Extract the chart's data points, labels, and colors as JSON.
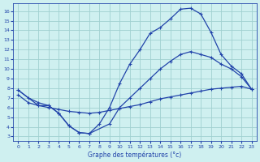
{
  "xlabel": "Graphe des températures (°c)",
  "bg_color": "#cff0f0",
  "grid_color": "#a0d0d0",
  "line_color": "#2244aa",
  "xlim": [
    -0.5,
    23.5
  ],
  "ylim": [
    2.5,
    16.8
  ],
  "xticks": [
    0,
    1,
    2,
    3,
    4,
    5,
    6,
    7,
    8,
    9,
    10,
    11,
    12,
    13,
    14,
    15,
    16,
    17,
    18,
    19,
    20,
    21,
    22,
    23
  ],
  "yticks": [
    3,
    4,
    5,
    6,
    7,
    8,
    9,
    10,
    11,
    12,
    13,
    14,
    15,
    16
  ],
  "curve_top_x": [
    0,
    1,
    2,
    3,
    4,
    5,
    6,
    7,
    8,
    9,
    10,
    11,
    12,
    13,
    14,
    15,
    16,
    17,
    18,
    19,
    20,
    21,
    22,
    23
  ],
  "curve_top_y": [
    7.8,
    7.0,
    6.5,
    6.2,
    5.4,
    4.1,
    3.4,
    3.3,
    4.3,
    6.0,
    8.5,
    10.5,
    12.0,
    13.7,
    14.3,
    15.2,
    16.2,
    16.3,
    15.7,
    13.8,
    11.5,
    10.3,
    9.5,
    7.9
  ],
  "curve_mid_x": [
    0,
    2,
    3,
    4,
    5,
    6,
    7,
    9,
    10,
    11,
    12,
    13,
    14,
    15,
    16,
    17,
    18,
    19,
    20,
    21,
    22,
    23
  ],
  "curve_mid_y": [
    7.8,
    6.2,
    6.2,
    5.4,
    4.1,
    3.4,
    3.3,
    4.3,
    6.0,
    7.0,
    8.0,
    9.0,
    10.0,
    10.8,
    11.5,
    11.8,
    11.5,
    11.2,
    10.5,
    10.0,
    9.2,
    7.9
  ],
  "curve_bot_x": [
    0,
    1,
    2,
    3,
    4,
    5,
    6,
    7,
    8,
    9,
    10,
    11,
    12,
    13,
    14,
    15,
    16,
    17,
    18,
    19,
    20,
    21,
    22,
    23
  ],
  "curve_bot_y": [
    7.3,
    6.5,
    6.2,
    6.0,
    5.8,
    5.6,
    5.5,
    5.4,
    5.5,
    5.7,
    5.9,
    6.1,
    6.3,
    6.6,
    6.9,
    7.1,
    7.3,
    7.5,
    7.7,
    7.9,
    8.0,
    8.1,
    8.2,
    7.9
  ]
}
